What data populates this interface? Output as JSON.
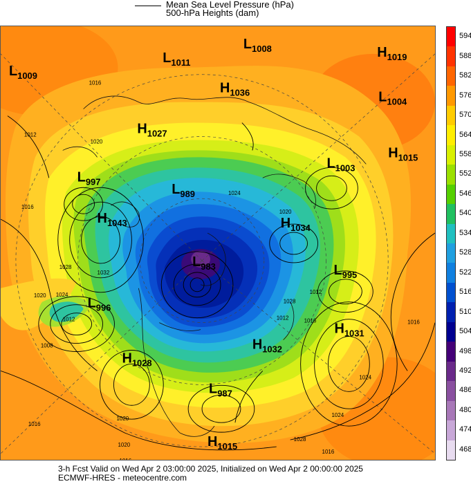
{
  "legend": {
    "mslp_label": "Mean Sea Level Pressure (hPa)",
    "heights_label": "500-hPa Heights (dam)"
  },
  "colorbar": {
    "labels": [
      "594",
      "588",
      "582",
      "576",
      "570",
      "564",
      "558",
      "552",
      "546",
      "540",
      "534",
      "528",
      "522",
      "516",
      "510",
      "504",
      "498",
      "492",
      "486",
      "480",
      "474",
      "468"
    ],
    "colors": [
      "#ff0000",
      "#ff3300",
      "#ff6600",
      "#ff9900",
      "#ffcc00",
      "#ffee00",
      "#d9f000",
      "#9be000",
      "#55d000",
      "#20c060",
      "#20c0c0",
      "#20a0e0",
      "#1080e0",
      "#0050d0",
      "#0020b0",
      "#000090",
      "#440077",
      "#6a2a8a",
      "#8a50a0",
      "#a878b8",
      "#c8a8d8",
      "#e8dcf0"
    ]
  },
  "pressure_centers": [
    {
      "type": "L",
      "value": "1009"
    },
    {
      "type": "L",
      "value": "1011"
    },
    {
      "type": "L",
      "value": "1008"
    },
    {
      "type": "H",
      "value": "1019"
    },
    {
      "type": "L",
      "value": "1004"
    },
    {
      "type": "H",
      "value": "1036"
    },
    {
      "type": "H",
      "value": "1027"
    },
    {
      "type": "H",
      "value": "1015"
    },
    {
      "type": "L",
      "value": "1003"
    },
    {
      "type": "L",
      "value": "997"
    },
    {
      "type": "L",
      "value": "989"
    },
    {
      "type": "H",
      "value": "1043"
    },
    {
      "type": "H",
      "value": "1034"
    },
    {
      "type": "L",
      "value": "983"
    },
    {
      "type": "L",
      "value": "995"
    },
    {
      "type": "L",
      "value": "996"
    },
    {
      "type": "H",
      "value": "1031"
    },
    {
      "type": "H",
      "value": "1032"
    },
    {
      "type": "H",
      "value": "1028"
    },
    {
      "type": "L",
      "value": "987"
    },
    {
      "type": "H",
      "value": "1015"
    }
  ],
  "isobar_labels": [
    "1016",
    "1012",
    "1020",
    "1016",
    "1028",
    "1032",
    "1020",
    "1024",
    "1012",
    "1008",
    "1020",
    "1024",
    "1028",
    "1012",
    "1016",
    "1012",
    "1016",
    "1020",
    "1024",
    "1020",
    "1016",
    "1028",
    "1024",
    "1016",
    "1016"
  ],
  "footer": {
    "line1": "3-h Fcst Valid on Wed Apr  2 03:00:00 2025, Initialized on Wed Apr  2 00:00:00 2025",
    "line2": "ECMWF-HRES  - meteocentre.com"
  }
}
